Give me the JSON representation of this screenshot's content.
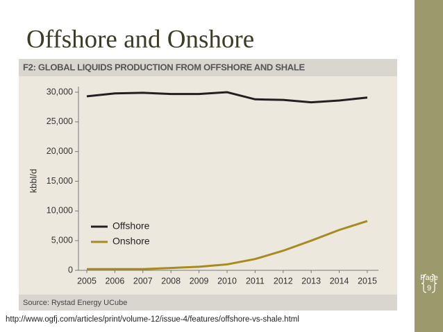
{
  "slide_title": "Offshore and Onshore",
  "chart_data": {
    "type": "line",
    "title": "F2: GLOBAL LIQUIDS PRODUCTION FROM OFFSHORE AND SHALE",
    "y_label": "kbbl/d",
    "source": "Source: Rystad Energy UCube",
    "categories": [
      "2005",
      "2006",
      "2007",
      "2008",
      "2009",
      "2010",
      "2011",
      "2012",
      "2013",
      "2014",
      "2015"
    ],
    "series": [
      {
        "name": "Offshore",
        "color": "#231f20",
        "values": [
          29300,
          29800,
          29900,
          29700,
          29700,
          30000,
          28800,
          28700,
          28300,
          28600,
          29100
        ]
      },
      {
        "name": "Onshore",
        "color": "#a88a1e",
        "values": [
          200,
          200,
          200,
          400,
          600,
          1000,
          1900,
          3300,
          5000,
          6800,
          8300
        ]
      }
    ],
    "ylim": [
      0,
      30000
    ],
    "yticks": [
      0,
      {
        "value": 5000,
        "label": "5,000"
      },
      {
        "value": 10000,
        "label": "10,000"
      },
      {
        "value": 15000,
        "label": "15,000"
      },
      {
        "value": 20000,
        "label": "20,000"
      },
      {
        "value": 25000,
        "label": "25,000"
      },
      {
        "value": 30000,
        "label": "30,000"
      }
    ],
    "legend": "left"
  },
  "url": "http://www.ogfj.com/articles/print/volume-12/issue-4/features/offshore-vs-shale.html",
  "page_indicator": {
    "label": "Page",
    "number": 9
  }
}
